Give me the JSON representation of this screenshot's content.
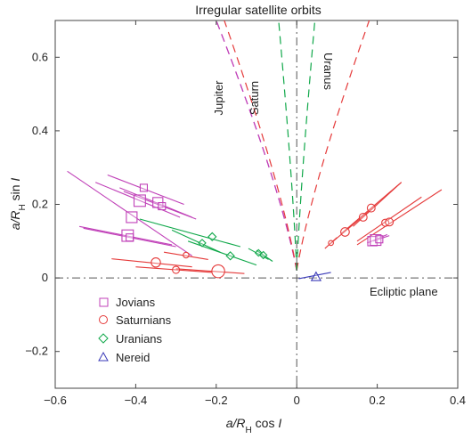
{
  "chart_data": {
    "type": "scatter",
    "title": "Irregular satellite orbits",
    "xlabel": {
      "main": "a/R",
      "sub": "H",
      "suffix": " cos ",
      "italic": "I"
    },
    "ylabel": {
      "main": "a/R",
      "sub": "H",
      "suffix": " sin ",
      "italic": "I"
    },
    "xlim": [
      -0.6,
      0.4
    ],
    "ylim": [
      -0.3,
      0.7
    ],
    "x_ticks": [
      -0.6,
      -0.4,
      -0.2,
      0,
      0.2,
      0.4
    ],
    "y_ticks": [
      -0.2,
      0,
      0.2,
      0.4,
      0.6
    ],
    "x_tick_labels": [
      "−0.6",
      "−0.4",
      "−0.2",
      "0",
      "0.2",
      "0.4"
    ],
    "y_tick_labels": [
      "−0.2",
      "0",
      "0.2",
      "0.4",
      "0.6"
    ],
    "legend_position": "lower-left",
    "colors": {
      "Jovians": "#c040b8",
      "Saturnians": "#e53a3a",
      "Uranians": "#10a84a",
      "Nereid": "#3a3ab8",
      "axes": "#555555"
    },
    "series": [
      {
        "name": "Jovians",
        "marker": "square",
        "points": [
          {
            "x": -0.38,
            "y": 0.245,
            "pericenter": [
              -0.47,
              0.28
            ],
            "apocenter": [
              -0.28,
              0.2
            ],
            "size": 1
          },
          {
            "x": -0.39,
            "y": 0.21,
            "pericenter": [
              -0.5,
              0.26
            ],
            "apocenter": [
              -0.29,
              0.165
            ],
            "size": 1.6
          },
          {
            "x": -0.345,
            "y": 0.205,
            "pericenter": [
              -0.44,
              0.245
            ],
            "apocenter": [
              -0.26,
              0.165
            ],
            "size": 1.4
          },
          {
            "x": -0.335,
            "y": 0.195,
            "pericenter": [
              -0.43,
              0.235
            ],
            "apocenter": [
              -0.25,
              0.16
            ],
            "size": 1
          },
          {
            "x": -0.41,
            "y": 0.165,
            "pericenter": [
              -0.57,
              0.29
            ],
            "apocenter": [
              -0.26,
              0.06
            ],
            "size": 1.5
          },
          {
            "x": -0.42,
            "y": 0.115,
            "pericenter": [
              -0.54,
              0.14
            ],
            "apocenter": [
              -0.31,
              0.09
            ],
            "size": 1.6
          },
          {
            "x": -0.415,
            "y": 0.11,
            "pericenter": [
              -0.53,
              0.135
            ],
            "apocenter": [
              -0.3,
              0.085
            ],
            "size": 1
          },
          {
            "x": 0.188,
            "y": 0.1,
            "pericenter": [
              0.175,
              0.095
            ],
            "apocenter": [
              0.21,
              0.11
            ],
            "size": 1.3
          },
          {
            "x": 0.196,
            "y": 0.103,
            "pericenter": [
              0.182,
              0.098
            ],
            "apocenter": [
              0.225,
              0.118
            ],
            "size": 1.5
          },
          {
            "x": 0.205,
            "y": 0.105,
            "pericenter": [
              0.19,
              0.1
            ],
            "apocenter": [
              0.23,
              0.115
            ],
            "size": 1
          }
        ]
      },
      {
        "name": "Saturnians",
        "marker": "circle",
        "points": [
          {
            "x": -0.35,
            "y": 0.042,
            "pericenter": [
              -0.46,
              0.052
            ],
            "apocenter": [
              -0.26,
              0.03
            ],
            "size": 1.3
          },
          {
            "x": -0.3,
            "y": 0.022,
            "pericenter": [
              -0.4,
              0.03
            ],
            "apocenter": [
              -0.21,
              0.015
            ],
            "size": 1
          },
          {
            "x": -0.275,
            "y": 0.062,
            "pericenter": [
              -0.33,
              0.07
            ],
            "apocenter": [
              -0.22,
              0.05
            ],
            "size": 0.8
          },
          {
            "x": -0.195,
            "y": 0.018,
            "pericenter": [
              -0.3,
              0.025
            ],
            "apocenter": [
              -0.13,
              0.012
            ],
            "size": 1.8
          },
          {
            "x": 0.085,
            "y": 0.095,
            "pericenter": [
              0.07,
              0.08
            ],
            "apocenter": [
              0.1,
              0.11
            ],
            "size": 0.7
          },
          {
            "x": 0.12,
            "y": 0.125,
            "pericenter": [
              0.08,
              0.09
            ],
            "apocenter": [
              0.2,
              0.2
            ],
            "size": 1.2
          },
          {
            "x": 0.165,
            "y": 0.165,
            "pericenter": [
              0.11,
              0.12
            ],
            "apocenter": [
              0.26,
              0.26
            ],
            "size": 1.1
          },
          {
            "x": 0.185,
            "y": 0.19,
            "pericenter": [
              0.14,
              0.14
            ],
            "apocenter": [
              0.26,
              0.26
            ],
            "size": 1.1
          },
          {
            "x": 0.22,
            "y": 0.15,
            "pericenter": [
              0.15,
              0.1
            ],
            "apocenter": [
              0.31,
              0.22
            ],
            "size": 1
          },
          {
            "x": 0.23,
            "y": 0.152,
            "pericenter": [
              0.15,
              0.09
            ],
            "apocenter": [
              0.36,
              0.24
            ],
            "size": 1.1
          }
        ]
      },
      {
        "name": "Uranians",
        "marker": "diamond",
        "points": [
          {
            "x": -0.21,
            "y": 0.112,
            "pericenter": [
              -0.39,
              0.16
            ],
            "apocenter": [
              -0.14,
              0.085
            ],
            "size": 1.1
          },
          {
            "x": -0.235,
            "y": 0.095,
            "pericenter": [
              -0.31,
              0.13
            ],
            "apocenter": [
              -0.19,
              0.07
            ],
            "size": 1
          },
          {
            "x": -0.165,
            "y": 0.06,
            "pericenter": [
              -0.27,
              0.1
            ],
            "apocenter": [
              -0.1,
              0.035
            ],
            "size": 1.1
          },
          {
            "x": -0.095,
            "y": 0.068,
            "pericenter": [
              -0.12,
              0.08
            ],
            "apocenter": [
              -0.07,
              0.05
            ],
            "size": 0.9
          },
          {
            "x": -0.083,
            "y": 0.062,
            "pericenter": [
              -0.1,
              0.075
            ],
            "apocenter": [
              -0.06,
              0.045
            ],
            "size": 1
          }
        ]
      },
      {
        "name": "Nereid",
        "marker": "triangle",
        "points": [
          {
            "x": 0.048,
            "y": 0.003,
            "pericenter": [
              0.005,
              -0.002
            ],
            "apocenter": [
              0.085,
              0.015
            ],
            "size": 1.3
          }
        ]
      }
    ],
    "stability_limits": [
      {
        "name": "Jupiter",
        "color": "#c040b8",
        "prograde_x_at_top": -0.2,
        "retrograde_x_at_top": -0.2
      },
      {
        "name": "Saturn",
        "color": "#e53a3a",
        "prograde_x_at_top": -0.18,
        "retrograde_x_at_top": 0.18
      },
      {
        "name": "Uranus",
        "color": "#10a84a",
        "prograde_x_at_top": -0.045,
        "retrograde_x_at_top": 0.045
      }
    ],
    "annotations": {
      "curve_labels": [
        "Jupiter",
        "Saturn",
        "Uranus"
      ],
      "ecliptic_label": "Ecliptic plane"
    }
  }
}
